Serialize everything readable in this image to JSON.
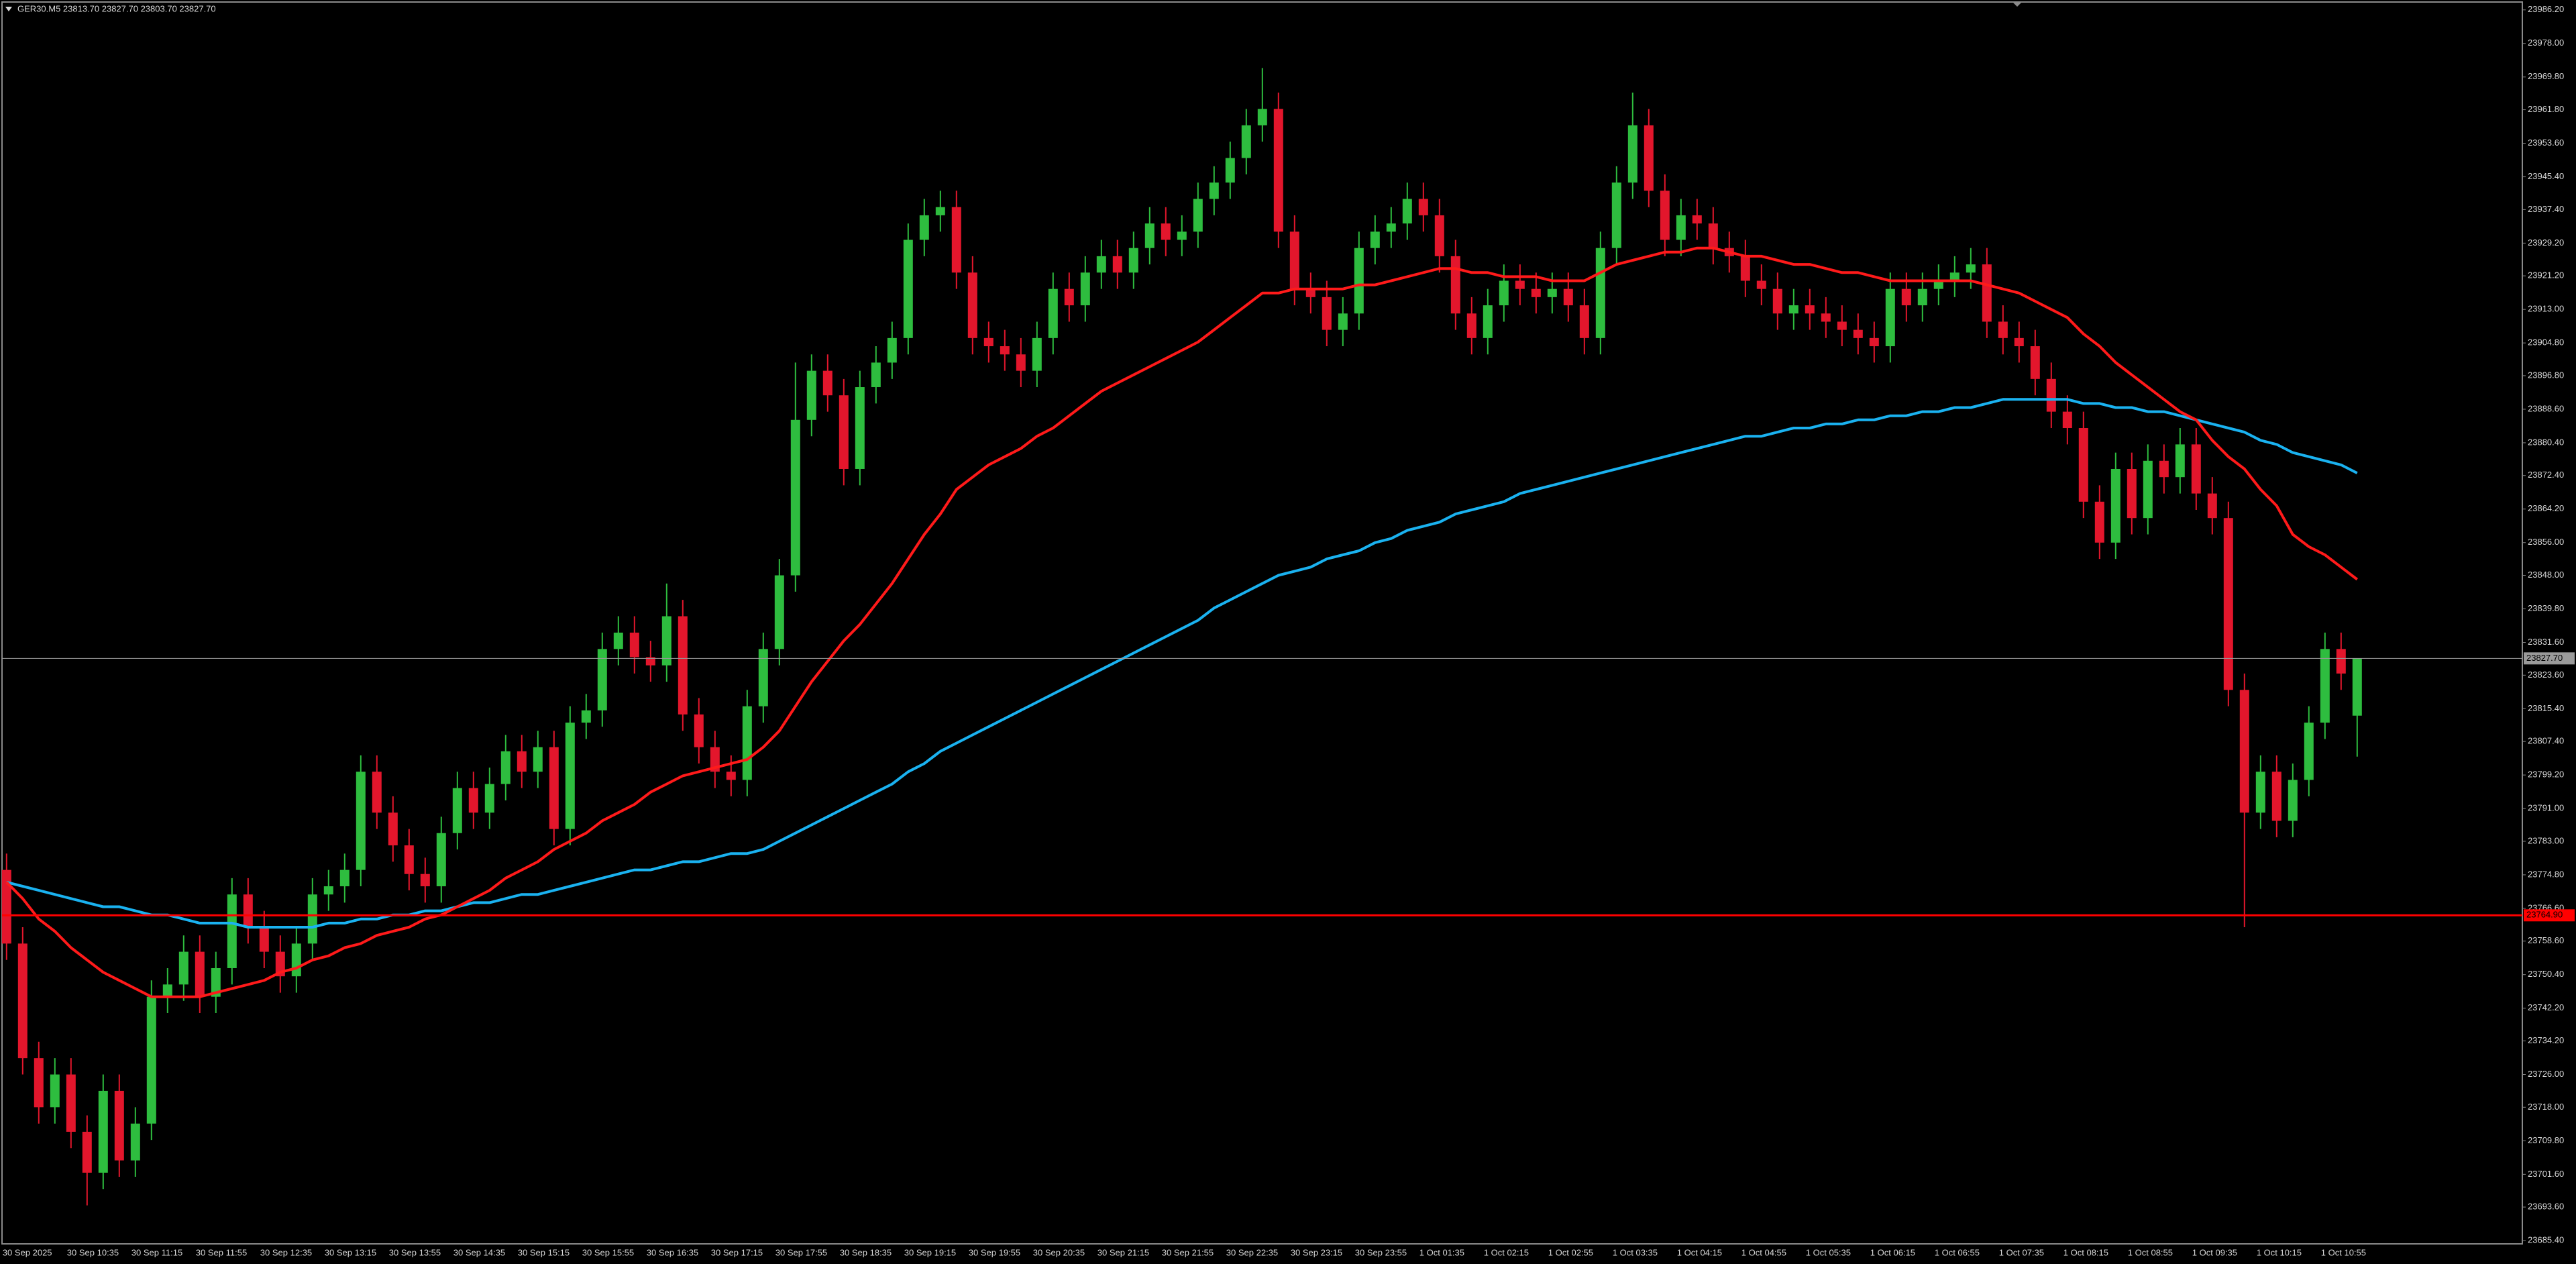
{
  "chart_data": {
    "type": "candlestick",
    "title": "GER30.M5  23813.70 23827.70 23803.70 23827.70",
    "up_color": "#2ebd3f",
    "down_color": "#e3162c",
    "ylim": [
      23684.6,
      23987.8
    ],
    "yticks": [
      {
        "value": 23986.2,
        "label": "23986.20"
      },
      {
        "value": 23978.0,
        "label": "23978.00"
      },
      {
        "value": 23969.8,
        "label": "23969.80"
      },
      {
        "value": 23961.8,
        "label": "23961.80"
      },
      {
        "value": 23953.6,
        "label": "23953.60"
      },
      {
        "value": 23945.4,
        "label": "23945.40"
      },
      {
        "value": 23937.4,
        "label": "23937.40"
      },
      {
        "value": 23929.2,
        "label": "23929.20"
      },
      {
        "value": 23921.2,
        "label": "23921.20"
      },
      {
        "value": 23913.0,
        "label": "23913.00"
      },
      {
        "value": 23904.8,
        "label": "23904.80"
      },
      {
        "value": 23896.8,
        "label": "23896.80"
      },
      {
        "value": 23888.6,
        "label": "23888.60"
      },
      {
        "value": 23880.4,
        "label": "23880.40"
      },
      {
        "value": 23872.4,
        "label": "23872.40"
      },
      {
        "value": 23864.2,
        "label": "23864.20"
      },
      {
        "value": 23856.0,
        "label": "23856.00"
      },
      {
        "value": 23848.0,
        "label": "23848.00"
      },
      {
        "value": 23839.8,
        "label": "23839.80"
      },
      {
        "value": 23831.6,
        "label": "23831.60"
      },
      {
        "value": 23823.6,
        "label": "23823.60"
      },
      {
        "value": 23815.4,
        "label": "23815.40"
      },
      {
        "value": 23807.4,
        "label": "23807.40"
      },
      {
        "value": 23799.2,
        "label": "23799.20"
      },
      {
        "value": 23791.0,
        "label": "23791.00"
      },
      {
        "value": 23783.0,
        "label": "23783.00"
      },
      {
        "value": 23774.8,
        "label": "23774.80"
      },
      {
        "value": 23766.6,
        "label": "23766.60"
      },
      {
        "value": 23758.6,
        "label": "23758.60"
      },
      {
        "value": 23750.4,
        "label": "23750.40"
      },
      {
        "value": 23742.2,
        "label": "23742.20"
      },
      {
        "value": 23734.2,
        "label": "23734.20"
      },
      {
        "value": 23726.0,
        "label": "23726.00"
      },
      {
        "value": 23718.0,
        "label": "23718.00"
      },
      {
        "value": 23709.8,
        "label": "23709.80"
      },
      {
        "value": 23701.6,
        "label": "23701.60"
      },
      {
        "value": 23693.6,
        "label": "23693.60"
      },
      {
        "value": 23685.4,
        "label": "23685.40"
      }
    ],
    "categories": [
      "30 Sep 2025",
      null,
      null,
      null,
      "30 Sep 10:35",
      null,
      null,
      null,
      "30 Sep 11:15",
      null,
      null,
      null,
      "30 Sep 11:55",
      null,
      null,
      null,
      "30 Sep 12:35",
      null,
      null,
      null,
      "30 Sep 13:15",
      null,
      null,
      null,
      "30 Sep 13:55",
      null,
      null,
      null,
      "30 Sep 14:35",
      null,
      null,
      null,
      "30 Sep 15:15",
      null,
      null,
      null,
      "30 Sep 15:55",
      null,
      null,
      null,
      "30 Sep 16:35",
      null,
      null,
      null,
      "30 Sep 17:15",
      null,
      null,
      null,
      "30 Sep 17:55",
      null,
      null,
      null,
      "30 Sep 18:35",
      null,
      null,
      null,
      "30 Sep 19:15",
      null,
      null,
      null,
      "30 Sep 19:55",
      null,
      null,
      null,
      "30 Sep 20:35",
      null,
      null,
      null,
      "30 Sep 21:15",
      null,
      null,
      null,
      "30 Sep 21:55",
      null,
      null,
      null,
      "30 Sep 22:35",
      null,
      null,
      null,
      "30 Sep 23:15",
      null,
      null,
      null,
      "30 Sep 23:55",
      null,
      null,
      null,
      "1 Oct 01:35",
      null,
      null,
      null,
      "1 Oct 02:15",
      null,
      null,
      null,
      "1 Oct 02:55",
      null,
      null,
      null,
      "1 Oct 03:35",
      null,
      null,
      null,
      "1 Oct 04:15",
      null,
      null,
      null,
      "1 Oct 04:55",
      null,
      null,
      null,
      "1 Oct 05:35",
      null,
      null,
      null,
      "1 Oct 06:15",
      null,
      null,
      null,
      "1 Oct 06:55",
      null,
      null,
      null,
      "1 Oct 07:35",
      null,
      null,
      null,
      "1 Oct 08:15",
      null,
      null,
      null,
      "1 Oct 08:55",
      null,
      null,
      null,
      "1 Oct 09:35",
      null,
      null,
      null,
      "1 Oct 10:15",
      null,
      null,
      null,
      "1 Oct 10:55",
      null,
      null
    ],
    "open": [
      23776,
      23758,
      23730,
      23718,
      23726,
      23712,
      23702,
      23722,
      23705,
      23714,
      23745,
      23748,
      23756,
      23745,
      23752,
      23770,
      23762,
      23756,
      23750,
      23758,
      23770,
      23772,
      23776,
      23800,
      23790,
      23782,
      23775,
      23772,
      23785,
      23796,
      23790,
      23797,
      23805,
      23800,
      23806,
      23786,
      23812,
      23815,
      23830,
      23834,
      23828,
      23826,
      23838,
      23814,
      23806,
      23800,
      23798,
      23816,
      23830,
      23848,
      23886,
      23898,
      23892,
      23874,
      23894,
      23900,
      23906,
      23930,
      23936,
      23938,
      23922,
      23906,
      23904,
      23902,
      23898,
      23906,
      23918,
      23914,
      23922,
      23926,
      23922,
      23928,
      23934,
      23930,
      23932,
      23940,
      23944,
      23950,
      23958,
      23962,
      23932,
      23918,
      23916,
      23908,
      23912,
      23928,
      23932,
      23934,
      23940,
      23936,
      23926,
      23912,
      23906,
      23914,
      23920,
      23918,
      23916,
      23918,
      23914,
      23906,
      23928,
      23944,
      23958,
      23942,
      23930,
      23936,
      23934,
      23928,
      23926,
      23920,
      23918,
      23912,
      23914,
      23912,
      23910,
      23908,
      23906,
      23904,
      23918,
      23914,
      23918,
      23920,
      23922,
      23924,
      23910,
      23906,
      23904,
      23896,
      23888,
      23884,
      23866,
      23856,
      23874,
      23862,
      23876,
      23872,
      23880,
      23868,
      23862,
      23820,
      23790,
      23800,
      23788,
      23798,
      23812,
      23830,
      23813.7
    ],
    "high": [
      23780,
      23762,
      23734,
      23730,
      23730,
      23716,
      23726,
      23726,
      23718,
      23749,
      23752,
      23760,
      23760,
      23756,
      23774,
      23774,
      23766,
      23760,
      23762,
      23774,
      23776,
      23780,
      23804,
      23804,
      23794,
      23786,
      23779,
      23789,
      23800,
      23800,
      23801,
      23809,
      23809,
      23810,
      23810,
      23816,
      23819,
      23834,
      23838,
      23838,
      23832,
      23846,
      23842,
      23818,
      23810,
      23804,
      23820,
      23834,
      23852,
      23900,
      23902,
      23902,
      23896,
      23898,
      23904,
      23910,
      23934,
      23940,
      23942,
      23942,
      23926,
      23910,
      23908,
      23906,
      23910,
      23922,
      23922,
      23926,
      23930,
      23930,
      23932,
      23938,
      23938,
      23936,
      23944,
      23948,
      23954,
      23962,
      23972,
      23966,
      23936,
      23922,
      23920,
      23916,
      23932,
      23936,
      23938,
      23944,
      23944,
      23940,
      23930,
      23916,
      23918,
      23924,
      23924,
      23922,
      23922,
      23922,
      23918,
      23932,
      23948,
      23966,
      23962,
      23946,
      23940,
      23940,
      23938,
      23932,
      23930,
      23924,
      23922,
      23918,
      23918,
      23916,
      23914,
      23912,
      23910,
      23922,
      23922,
      23922,
      23924,
      23926,
      23928,
      23928,
      23914,
      23910,
      23908,
      23900,
      23892,
      23888,
      23870,
      23878,
      23878,
      23880,
      23880,
      23884,
      23884,
      23872,
      23866,
      23824,
      23804,
      23804,
      23802,
      23816,
      23834,
      23834,
      23827.7
    ],
    "low": [
      23754,
      23726,
      23714,
      23714,
      23708,
      23694,
      23698,
      23701,
      23701,
      23710,
      23741,
      23744,
      23741,
      23741,
      23748,
      23758,
      23752,
      23746,
      23746,
      23754,
      23766,
      23768,
      23772,
      23786,
      23778,
      23771,
      23768,
      23768,
      23781,
      23786,
      23786,
      23793,
      23796,
      23796,
      23782,
      23782,
      23808,
      23811,
      23826,
      23824,
      23822,
      23822,
      23810,
      23802,
      23796,
      23794,
      23794,
      23812,
      23826,
      23844,
      23882,
      23888,
      23870,
      23870,
      23890,
      23896,
      23902,
      23926,
      23932,
      23918,
      23902,
      23900,
      23898,
      23894,
      23894,
      23902,
      23910,
      23910,
      23918,
      23918,
      23918,
      23924,
      23926,
      23926,
      23928,
      23936,
      23940,
      23946,
      23954,
      23928,
      23914,
      23912,
      23904,
      23904,
      23908,
      23924,
      23928,
      23930,
      23932,
      23922,
      23908,
      23902,
      23902,
      23910,
      23914,
      23912,
      23912,
      23910,
      23902,
      23902,
      23924,
      23940,
      23938,
      23926,
      23926,
      23930,
      23924,
      23922,
      23916,
      23914,
      23908,
      23908,
      23908,
      23906,
      23904,
      23902,
      23900,
      23900,
      23910,
      23910,
      23914,
      23916,
      23918,
      23906,
      23902,
      23900,
      23892,
      23884,
      23880,
      23862,
      23852,
      23852,
      23858,
      23858,
      23868,
      23868,
      23864,
      23858,
      23816,
      23762,
      23786,
      23784,
      23784,
      23794,
      23808,
      23820,
      23803.7
    ],
    "close": [
      23758,
      23730,
      23718,
      23726,
      23712,
      23702,
      23722,
      23705,
      23714,
      23745,
      23748,
      23756,
      23745,
      23752,
      23770,
      23762,
      23756,
      23750,
      23758,
      23770,
      23772,
      23776,
      23800,
      23790,
      23782,
      23775,
      23772,
      23785,
      23796,
      23790,
      23797,
      23805,
      23800,
      23806,
      23786,
      23812,
      23815,
      23830,
      23834,
      23828,
      23826,
      23838,
      23814,
      23806,
      23800,
      23798,
      23816,
      23830,
      23848,
      23886,
      23898,
      23892,
      23874,
      23894,
      23900,
      23906,
      23930,
      23936,
      23938,
      23922,
      23906,
      23904,
      23902,
      23898,
      23906,
      23918,
      23914,
      23922,
      23926,
      23922,
      23928,
      23934,
      23930,
      23932,
      23940,
      23944,
      23950,
      23958,
      23962,
      23932,
      23918,
      23916,
      23908,
      23912,
      23928,
      23932,
      23934,
      23940,
      23936,
      23926,
      23912,
      23906,
      23914,
      23920,
      23918,
      23916,
      23918,
      23914,
      23906,
      23928,
      23944,
      23958,
      23942,
      23930,
      23936,
      23934,
      23928,
      23926,
      23920,
      23918,
      23912,
      23914,
      23912,
      23910,
      23908,
      23906,
      23904,
      23918,
      23914,
      23918,
      23920,
      23922,
      23924,
      23910,
      23906,
      23904,
      23896,
      23888,
      23884,
      23866,
      23856,
      23874,
      23862,
      23876,
      23872,
      23880,
      23868,
      23862,
      23820,
      23790,
      23800,
      23788,
      23798,
      23812,
      23830,
      23824,
      23827.7
    ],
    "overlays": [
      {
        "color": "#1ab2f0",
        "values": [
          23773,
          23772,
          23771,
          23770,
          23769,
          23768,
          23767,
          23767,
          23766,
          23765,
          23765,
          23764,
          23763,
          23763,
          23763,
          23762,
          23762,
          23762,
          23762,
          23762,
          23763,
          23763,
          23764,
          23764,
          23765,
          23765,
          23766,
          23766,
          23767,
          23768,
          23768,
          23769,
          23770,
          23770,
          23771,
          23772,
          23773,
          23774,
          23775,
          23776,
          23776,
          23777,
          23778,
          23778,
          23779,
          23780,
          23780,
          23781,
          23783,
          23785,
          23787,
          23789,
          23791,
          23793,
          23795,
          23797,
          23800,
          23802,
          23805,
          23807,
          23809,
          23811,
          23813,
          23815,
          23817,
          23819,
          23821,
          23823,
          23825,
          23827,
          23829,
          23831,
          23833,
          23835,
          23837,
          23840,
          23842,
          23844,
          23846,
          23848,
          23849,
          23850,
          23852,
          23853,
          23854,
          23856,
          23857,
          23859,
          23860,
          23861,
          23863,
          23864,
          23865,
          23866,
          23868,
          23869,
          23870,
          23871,
          23872,
          23873,
          23874,
          23875,
          23876,
          23877,
          23878,
          23879,
          23880,
          23881,
          23882,
          23882,
          23883,
          23884,
          23884,
          23885,
          23885,
          23886,
          23886,
          23887,
          23887,
          23888,
          23888,
          23889,
          23889,
          23890,
          23891,
          23891,
          23891,
          23891,
          23891,
          23890,
          23890,
          23889,
          23889,
          23888,
          23888,
          23887,
          23886,
          23885,
          23884,
          23883,
          23881,
          23880,
          23878,
          23877,
          23876,
          23875,
          23873
        ]
      },
      {
        "color": "#ff1a1a",
        "values": [
          23773,
          23769,
          23764,
          23761,
          23757,
          23754,
          23751,
          23749,
          23747,
          23745,
          23745,
          23745,
          23745,
          23746,
          23747,
          23748,
          23749,
          23751,
          23752,
          23754,
          23755,
          23757,
          23758,
          23760,
          23761,
          23762,
          23764,
          23765,
          23767,
          23769,
          23771,
          23774,
          23776,
          23778,
          23781,
          23783,
          23785,
          23788,
          23790,
          23792,
          23795,
          23797,
          23799,
          23800,
          23801,
          23802,
          23803,
          23806,
          23810,
          23816,
          23822,
          23827,
          23832,
          23836,
          23841,
          23846,
          23852,
          23858,
          23863,
          23869,
          23872,
          23875,
          23877,
          23879,
          23882,
          23884,
          23887,
          23890,
          23893,
          23895,
          23897,
          23899,
          23901,
          23903,
          23905,
          23908,
          23911,
          23914,
          23917,
          23917,
          23918,
          23918,
          23918,
          23918,
          23919,
          23919,
          23920,
          23921,
          23922,
          23923,
          23923,
          23922,
          23922,
          23921,
          23921,
          23921,
          23920,
          23920,
          23920,
          23922,
          23924,
          23925,
          23926,
          23927,
          23927,
          23928,
          23928,
          23927,
          23926,
          23926,
          23925,
          23924,
          23924,
          23923,
          23922,
          23922,
          23921,
          23920,
          23920,
          23920,
          23920,
          23920,
          23920,
          23919,
          23918,
          23917,
          23915,
          23913,
          23911,
          23907,
          23904,
          23900,
          23897,
          23894,
          23891,
          23888,
          23886,
          23881,
          23877,
          23874,
          23869,
          23865,
          23858,
          23855,
          23853,
          23850,
          23847
        ]
      }
    ],
    "hlines": [
      {
        "value": 23827.7,
        "label": "23827.70",
        "color": "#9a9a9a"
      },
      {
        "value": 23764.9,
        "label": "23764.90",
        "color": "#ff0000"
      }
    ]
  }
}
